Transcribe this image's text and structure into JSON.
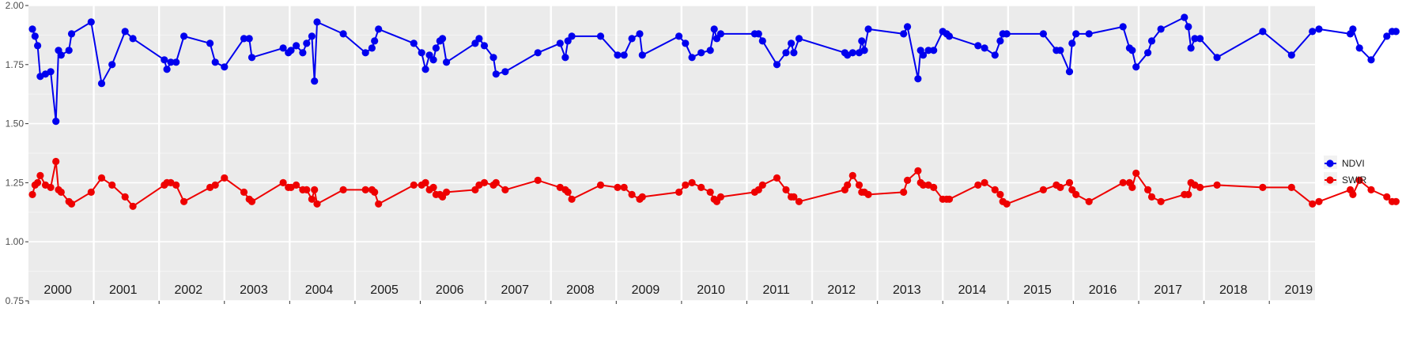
{
  "chart_data": {
    "type": "line",
    "title": "",
    "xlabel": "",
    "ylabel": "",
    "xlim": [
      2000,
      2020
    ],
    "ylim": [
      0.75,
      2.0
    ],
    "y_ticks": [
      0.75,
      1.0,
      1.25,
      1.5,
      1.75,
      2.0
    ],
    "y_tick_labels": [
      "0.75",
      "1.00",
      "1.25",
      "1.50",
      "1.75",
      "2.00"
    ],
    "year_labels": [
      "2000",
      "2001",
      "2002",
      "2003",
      "2004",
      "2005",
      "2006",
      "2007",
      "2008",
      "2009",
      "2010",
      "2011",
      "2012",
      "2013",
      "2014",
      "2015",
      "2016",
      "2017",
      "2018",
      "2019"
    ],
    "grid": true,
    "legend_position": "right",
    "series": [
      {
        "name": "NDVI",
        "color": "#0000ee",
        "points": [
          [
            2000.06,
            1.9
          ],
          [
            2000.1,
            1.87
          ],
          [
            2000.14,
            1.83
          ],
          [
            2000.18,
            1.7
          ],
          [
            2000.26,
            1.71
          ],
          [
            2000.34,
            1.72
          ],
          [
            2000.42,
            1.51
          ],
          [
            2000.46,
            1.81
          ],
          [
            2000.5,
            1.79
          ],
          [
            2000.62,
            1.81
          ],
          [
            2000.66,
            1.88
          ],
          [
            2000.96,
            1.93
          ],
          [
            2001.12,
            1.67
          ],
          [
            2001.28,
            1.75
          ],
          [
            2001.48,
            1.89
          ],
          [
            2001.6,
            1.86
          ],
          [
            2002.08,
            1.77
          ],
          [
            2002.12,
            1.73
          ],
          [
            2002.18,
            1.76
          ],
          [
            2002.26,
            1.76
          ],
          [
            2002.38,
            1.87
          ],
          [
            2002.78,
            1.84
          ],
          [
            2002.86,
            1.76
          ],
          [
            2003.0,
            1.74
          ],
          [
            2003.3,
            1.86
          ],
          [
            2003.38,
            1.86
          ],
          [
            2003.42,
            1.78
          ],
          [
            2003.9,
            1.82
          ],
          [
            2003.98,
            1.8
          ],
          [
            2004.02,
            1.81
          ],
          [
            2004.1,
            1.83
          ],
          [
            2004.2,
            1.8
          ],
          [
            2004.26,
            1.84
          ],
          [
            2004.34,
            1.87
          ],
          [
            2004.38,
            1.68
          ],
          [
            2004.42,
            1.93
          ],
          [
            2004.82,
            1.88
          ],
          [
            2005.16,
            1.8
          ],
          [
            2005.26,
            1.82
          ],
          [
            2005.3,
            1.85
          ],
          [
            2005.36,
            1.9
          ],
          [
            2005.9,
            1.84
          ],
          [
            2006.02,
            1.8
          ],
          [
            2006.08,
            1.73
          ],
          [
            2006.14,
            1.79
          ],
          [
            2006.2,
            1.77
          ],
          [
            2006.24,
            1.82
          ],
          [
            2006.3,
            1.85
          ],
          [
            2006.34,
            1.86
          ],
          [
            2006.4,
            1.76
          ],
          [
            2006.84,
            1.84
          ],
          [
            2006.9,
            1.86
          ],
          [
            2006.98,
            1.83
          ],
          [
            2007.12,
            1.78
          ],
          [
            2007.16,
            1.71
          ],
          [
            2007.3,
            1.72
          ],
          [
            2007.8,
            1.8
          ],
          [
            2008.14,
            1.84
          ],
          [
            2008.22,
            1.78
          ],
          [
            2008.26,
            1.85
          ],
          [
            2008.32,
            1.87
          ],
          [
            2008.76,
            1.87
          ],
          [
            2009.02,
            1.79
          ],
          [
            2009.12,
            1.79
          ],
          [
            2009.24,
            1.86
          ],
          [
            2009.36,
            1.88
          ],
          [
            2009.4,
            1.79
          ],
          [
            2009.96,
            1.87
          ],
          [
            2010.06,
            1.84
          ],
          [
            2010.16,
            1.78
          ],
          [
            2010.3,
            1.8
          ],
          [
            2010.44,
            1.81
          ],
          [
            2010.5,
            1.9
          ],
          [
            2010.54,
            1.86
          ],
          [
            2010.6,
            1.88
          ],
          [
            2011.12,
            1.88
          ],
          [
            2011.18,
            1.88
          ],
          [
            2011.24,
            1.85
          ],
          [
            2011.46,
            1.75
          ],
          [
            2011.6,
            1.8
          ],
          [
            2011.68,
            1.84
          ],
          [
            2011.72,
            1.8
          ],
          [
            2011.8,
            1.86
          ],
          [
            2012.5,
            1.8
          ],
          [
            2012.54,
            1.79
          ],
          [
            2012.62,
            1.8
          ],
          [
            2012.72,
            1.8
          ],
          [
            2012.76,
            1.85
          ],
          [
            2012.8,
            1.81
          ],
          [
            2012.86,
            1.9
          ],
          [
            2013.4,
            1.88
          ],
          [
            2013.46,
            1.91
          ],
          [
            2013.62,
            1.69
          ],
          [
            2013.66,
            1.81
          ],
          [
            2013.7,
            1.79
          ],
          [
            2013.78,
            1.81
          ],
          [
            2013.86,
            1.81
          ],
          [
            2014.0,
            1.89
          ],
          [
            2014.06,
            1.88
          ],
          [
            2014.1,
            1.87
          ],
          [
            2014.54,
            1.83
          ],
          [
            2014.64,
            1.82
          ],
          [
            2014.8,
            1.79
          ],
          [
            2014.88,
            1.85
          ],
          [
            2014.92,
            1.88
          ],
          [
            2014.98,
            1.88
          ],
          [
            2015.54,
            1.88
          ],
          [
            2015.74,
            1.81
          ],
          [
            2015.8,
            1.81
          ],
          [
            2015.94,
            1.72
          ],
          [
            2015.98,
            1.84
          ],
          [
            2016.04,
            1.88
          ],
          [
            2016.24,
            1.88
          ],
          [
            2016.76,
            1.91
          ],
          [
            2016.86,
            1.82
          ],
          [
            2016.9,
            1.81
          ],
          [
            2016.96,
            1.74
          ],
          [
            2017.14,
            1.8
          ],
          [
            2017.2,
            1.85
          ],
          [
            2017.34,
            1.9
          ],
          [
            2017.7,
            1.95
          ],
          [
            2017.76,
            1.91
          ],
          [
            2017.8,
            1.82
          ],
          [
            2017.86,
            1.86
          ],
          [
            2017.94,
            1.86
          ],
          [
            2018.2,
            1.78
          ],
          [
            2018.9,
            1.89
          ],
          [
            2019.34,
            1.79
          ],
          [
            2019.66,
            1.89
          ],
          [
            2019.76,
            1.9
          ],
          [
            2020.24,
            1.88
          ],
          [
            2020.28,
            1.9
          ],
          [
            2020.38,
            1.82
          ],
          [
            2020.56,
            1.77
          ],
          [
            2020.8,
            1.87
          ],
          [
            2020.88,
            1.89
          ],
          [
            2020.94,
            1.89
          ]
        ]
      },
      {
        "name": "SWIR",
        "color": "#ee0000",
        "points": [
          [
            2000.06,
            1.2
          ],
          [
            2000.1,
            1.24
          ],
          [
            2000.14,
            1.25
          ],
          [
            2000.18,
            1.28
          ],
          [
            2000.26,
            1.24
          ],
          [
            2000.34,
            1.23
          ],
          [
            2000.42,
            1.34
          ],
          [
            2000.46,
            1.22
          ],
          [
            2000.5,
            1.21
          ],
          [
            2000.62,
            1.17
          ],
          [
            2000.66,
            1.16
          ],
          [
            2000.96,
            1.21
          ],
          [
            2001.12,
            1.27
          ],
          [
            2001.28,
            1.24
          ],
          [
            2001.48,
            1.19
          ],
          [
            2001.6,
            1.15
          ],
          [
            2002.08,
            1.24
          ],
          [
            2002.12,
            1.25
          ],
          [
            2002.18,
            1.25
          ],
          [
            2002.26,
            1.24
          ],
          [
            2002.38,
            1.17
          ],
          [
            2002.78,
            1.23
          ],
          [
            2002.86,
            1.24
          ],
          [
            2003.0,
            1.27
          ],
          [
            2003.3,
            1.21
          ],
          [
            2003.38,
            1.18
          ],
          [
            2003.42,
            1.17
          ],
          [
            2003.9,
            1.25
          ],
          [
            2003.98,
            1.23
          ],
          [
            2004.02,
            1.23
          ],
          [
            2004.1,
            1.24
          ],
          [
            2004.2,
            1.22
          ],
          [
            2004.26,
            1.22
          ],
          [
            2004.34,
            1.18
          ],
          [
            2004.38,
            1.22
          ],
          [
            2004.42,
            1.16
          ],
          [
            2004.82,
            1.22
          ],
          [
            2005.16,
            1.22
          ],
          [
            2005.26,
            1.22
          ],
          [
            2005.3,
            1.21
          ],
          [
            2005.36,
            1.16
          ],
          [
            2005.9,
            1.24
          ],
          [
            2006.02,
            1.24
          ],
          [
            2006.08,
            1.25
          ],
          [
            2006.14,
            1.22
          ],
          [
            2006.2,
            1.23
          ],
          [
            2006.24,
            1.2
          ],
          [
            2006.3,
            1.2
          ],
          [
            2006.34,
            1.19
          ],
          [
            2006.4,
            1.21
          ],
          [
            2006.84,
            1.22
          ],
          [
            2006.9,
            1.24
          ],
          [
            2006.98,
            1.25
          ],
          [
            2007.12,
            1.24
          ],
          [
            2007.16,
            1.25
          ],
          [
            2007.3,
            1.22
          ],
          [
            2007.8,
            1.26
          ],
          [
            2008.14,
            1.23
          ],
          [
            2008.22,
            1.22
          ],
          [
            2008.26,
            1.21
          ],
          [
            2008.32,
            1.18
          ],
          [
            2008.76,
            1.24
          ],
          [
            2009.02,
            1.23
          ],
          [
            2009.12,
            1.23
          ],
          [
            2009.24,
            1.2
          ],
          [
            2009.36,
            1.18
          ],
          [
            2009.4,
            1.19
          ],
          [
            2009.96,
            1.21
          ],
          [
            2010.06,
            1.24
          ],
          [
            2010.16,
            1.25
          ],
          [
            2010.3,
            1.23
          ],
          [
            2010.44,
            1.21
          ],
          [
            2010.5,
            1.18
          ],
          [
            2010.54,
            1.17
          ],
          [
            2010.6,
            1.19
          ],
          [
            2011.12,
            1.21
          ],
          [
            2011.18,
            1.22
          ],
          [
            2011.24,
            1.24
          ],
          [
            2011.46,
            1.27
          ],
          [
            2011.6,
            1.22
          ],
          [
            2011.68,
            1.19
          ],
          [
            2011.72,
            1.19
          ],
          [
            2011.8,
            1.17
          ],
          [
            2012.5,
            1.22
          ],
          [
            2012.54,
            1.24
          ],
          [
            2012.62,
            1.28
          ],
          [
            2012.72,
            1.24
          ],
          [
            2012.76,
            1.21
          ],
          [
            2012.8,
            1.21
          ],
          [
            2012.86,
            1.2
          ],
          [
            2013.4,
            1.21
          ],
          [
            2013.46,
            1.26
          ],
          [
            2013.62,
            1.3
          ],
          [
            2013.66,
            1.25
          ],
          [
            2013.7,
            1.24
          ],
          [
            2013.78,
            1.24
          ],
          [
            2013.86,
            1.23
          ],
          [
            2014.0,
            1.18
          ],
          [
            2014.06,
            1.18
          ],
          [
            2014.1,
            1.18
          ],
          [
            2014.54,
            1.24
          ],
          [
            2014.64,
            1.25
          ],
          [
            2014.8,
            1.22
          ],
          [
            2014.88,
            1.2
          ],
          [
            2014.92,
            1.17
          ],
          [
            2014.98,
            1.16
          ],
          [
            2015.54,
            1.22
          ],
          [
            2015.74,
            1.24
          ],
          [
            2015.8,
            1.23
          ],
          [
            2015.94,
            1.25
          ],
          [
            2015.98,
            1.22
          ],
          [
            2016.04,
            1.2
          ],
          [
            2016.24,
            1.17
          ],
          [
            2016.76,
            1.25
          ],
          [
            2016.86,
            1.25
          ],
          [
            2016.9,
            1.23
          ],
          [
            2016.96,
            1.29
          ],
          [
            2017.14,
            1.22
          ],
          [
            2017.2,
            1.19
          ],
          [
            2017.34,
            1.17
          ],
          [
            2017.7,
            1.2
          ],
          [
            2017.76,
            1.2
          ],
          [
            2017.8,
            1.25
          ],
          [
            2017.86,
            1.24
          ],
          [
            2017.94,
            1.23
          ],
          [
            2018.2,
            1.24
          ],
          [
            2018.9,
            1.23
          ],
          [
            2019.34,
            1.23
          ],
          [
            2019.66,
            1.16
          ],
          [
            2019.76,
            1.17
          ],
          [
            2020.24,
            1.22
          ],
          [
            2020.28,
            1.2
          ],
          [
            2020.38,
            1.26
          ],
          [
            2020.56,
            1.22
          ],
          [
            2020.8,
            1.19
          ],
          [
            2020.88,
            1.17
          ],
          [
            2020.94,
            1.17
          ]
        ]
      }
    ]
  }
}
